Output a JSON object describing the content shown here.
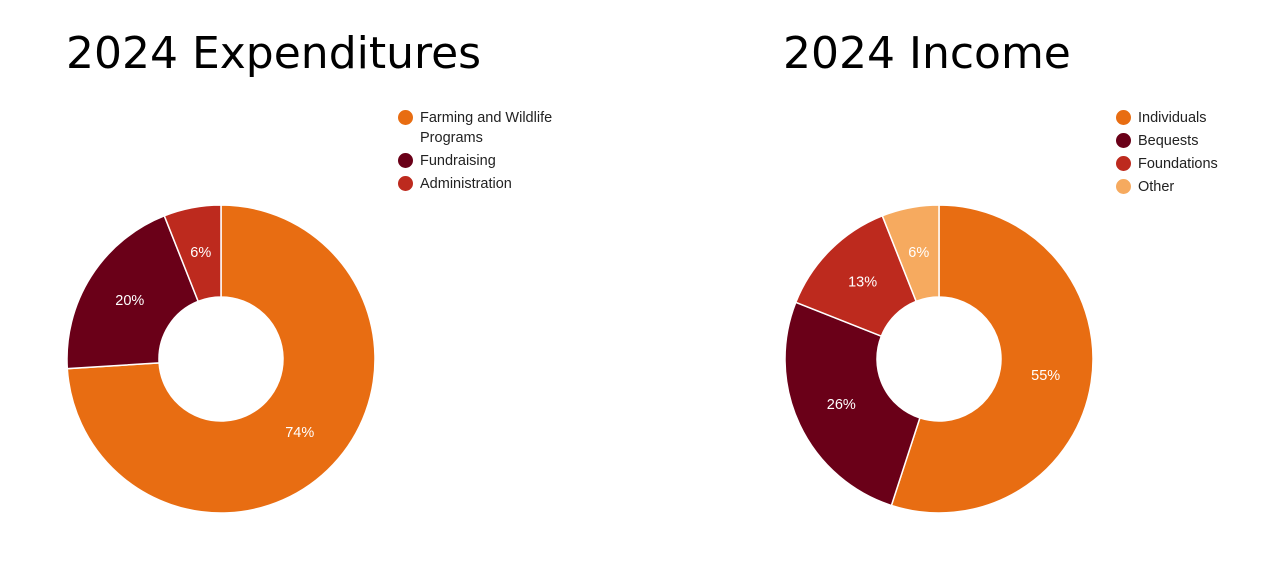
{
  "chart_data": [
    {
      "type": "pie",
      "title": "2024 Expenditures",
      "categories": [
        "Farming and Wildlife Programs",
        "Fundraising",
        "Administration"
      ],
      "values": [
        74,
        20,
        6
      ],
      "labels": [
        "74%",
        "20%",
        "6%"
      ],
      "colors": [
        "#e86d12",
        "#6a0018",
        "#bd2a1e"
      ],
      "hole": true,
      "legend": "top-right"
    },
    {
      "type": "pie",
      "title": "2024 Income",
      "categories": [
        "Individuals",
        "Bequests",
        "Foundations",
        "Other"
      ],
      "values": [
        55,
        26,
        13,
        6
      ],
      "labels": [
        "55%",
        "26%",
        "13%",
        "6%"
      ],
      "colors": [
        "#e86d12",
        "#6a0018",
        "#bd2a1e",
        "#f6aa5f"
      ],
      "hole": true,
      "legend": "top-right"
    }
  ]
}
